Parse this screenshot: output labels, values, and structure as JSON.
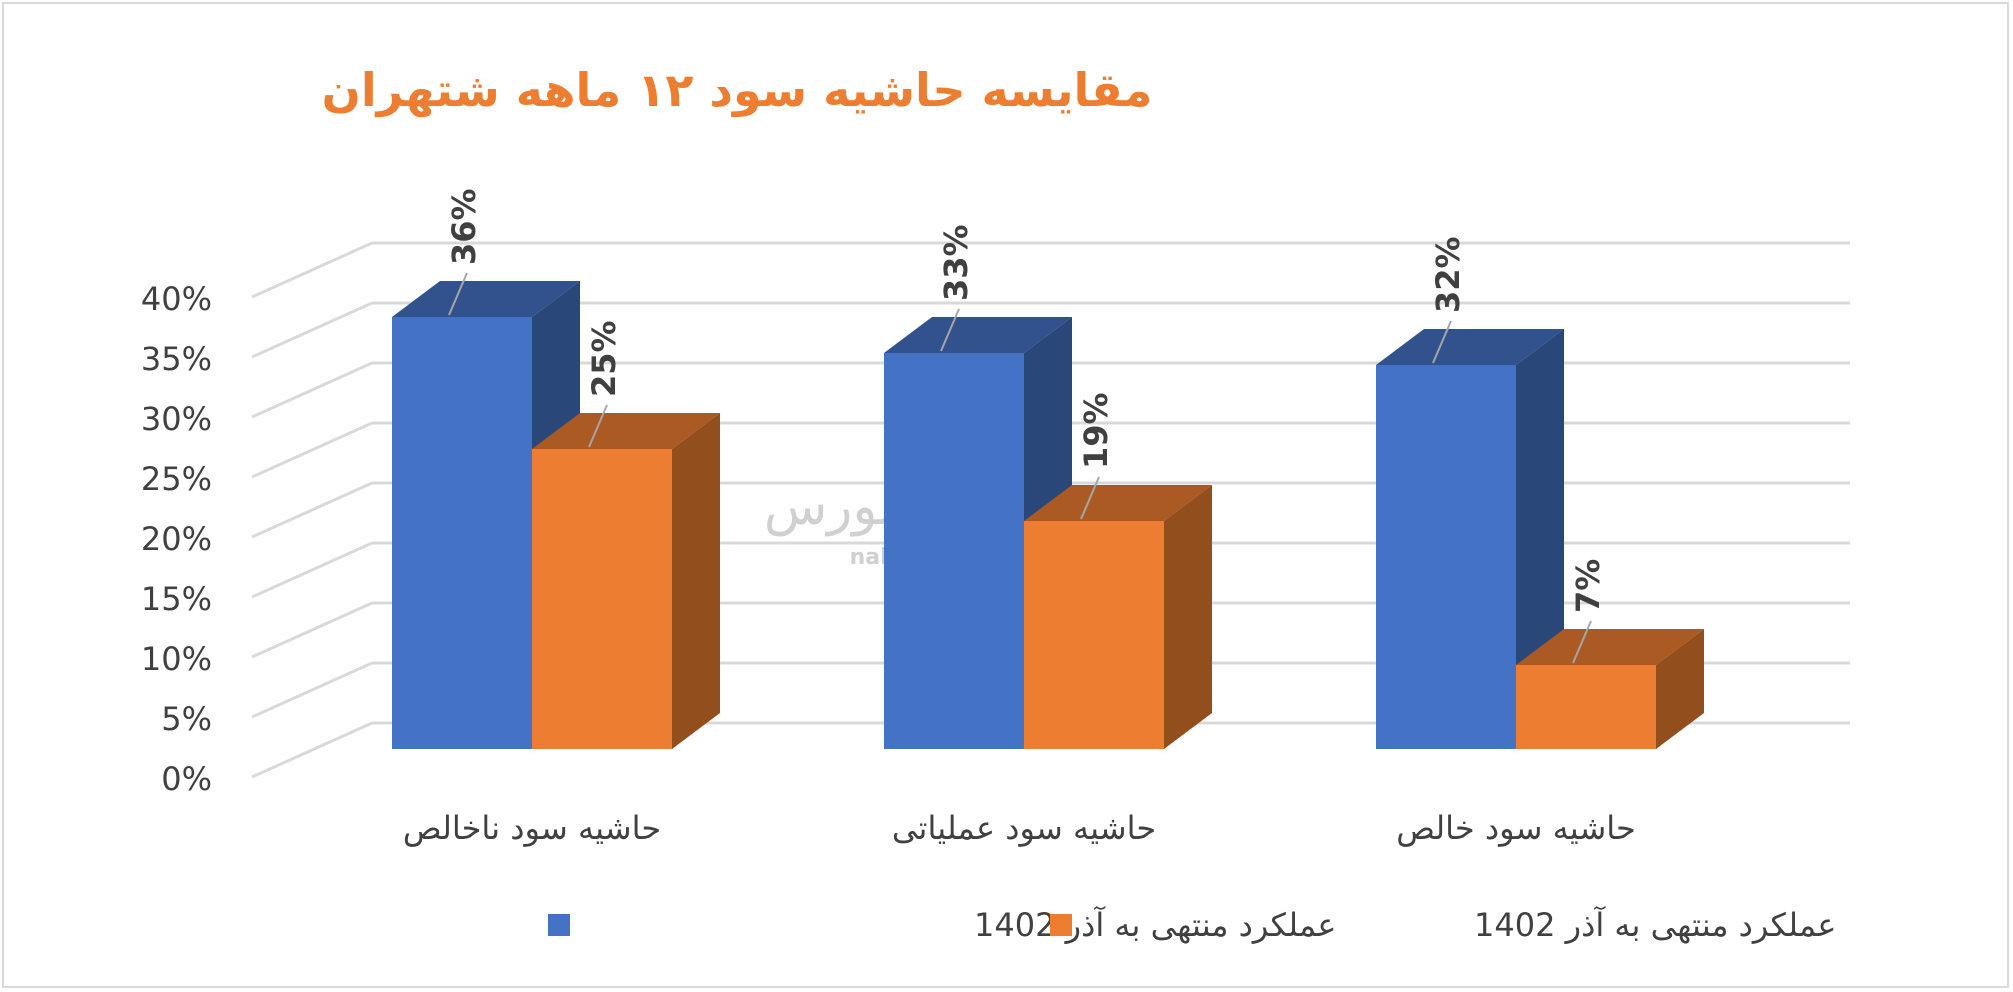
{
  "chart_data": {
    "type": "bar",
    "title": "مقایسه حاشیه سود ۱۲ ماهه شتهران",
    "categories": [
      "حاشیه سود ناخالص",
      "حاشیه سود عملیاتی",
      "حاشیه سود خالص"
    ],
    "series": [
      {
        "name": "عملکرد منتهی به آذر 1402",
        "color": "#4472c4",
        "values": [
          36,
          33,
          32
        ],
        "labels": [
          "36%",
          "33%",
          "32%"
        ]
      },
      {
        "name": "عملکرد منتهی به آذر 1402",
        "color": "#ed7d31",
        "values": [
          25,
          19,
          7
        ],
        "labels": [
          "25%",
          "19%",
          "7%"
        ]
      }
    ],
    "yticks": [
      "0%",
      "5%",
      "10%",
      "15%",
      "20%",
      "25%",
      "30%",
      "35%",
      "40%"
    ],
    "ylim": [
      0,
      40
    ],
    "grid": true,
    "legend_position": "bottom",
    "style": "3d-clustered-column"
  },
  "watermark": {
    "brand": "نبض بورس",
    "url": "nabzebourse.com"
  }
}
